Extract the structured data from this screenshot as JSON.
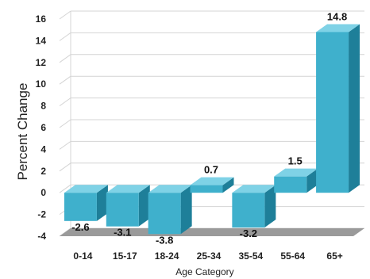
{
  "chart_data": {
    "type": "bar",
    "title": "",
    "xlabel": "Age Category",
    "ylabel": "Percent Change",
    "categories": [
      "0-14",
      "15-17",
      "18-24",
      "25-34",
      "35-54",
      "55-64",
      "65+"
    ],
    "values": [
      -2.6,
      -3.1,
      -3.8,
      0.7,
      -3.2,
      1.5,
      14.8
    ],
    "data_labels": [
      "-2.6",
      "-3.1",
      "-3.8",
      "0.7",
      "-3.2",
      "1.5",
      "14.8"
    ],
    "yticks": [
      16,
      14,
      12,
      10,
      8,
      6,
      4,
      2,
      0,
      -2,
      -4
    ],
    "ylim": [
      -4,
      16
    ],
    "grid": true,
    "legend": "none",
    "colors": {
      "bar_front": "#3fb0cc",
      "bar_side": "#1e7f99",
      "bar_top": "#7fd2e6",
      "grid": "#d4d4d4",
      "floor": "#9a9a9a"
    }
  }
}
